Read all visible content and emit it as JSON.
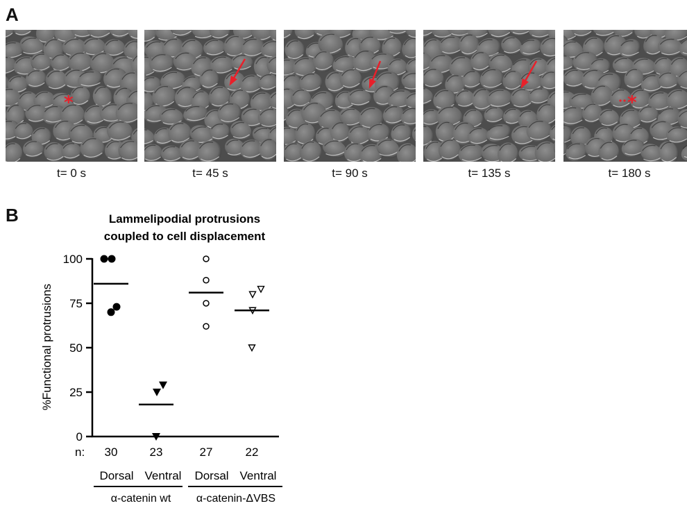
{
  "panel_a": {
    "label": "A",
    "frames": [
      {
        "caption": "t= 0 s",
        "marker": "asterisk"
      },
      {
        "caption": "t= 45 s",
        "marker": "arrow"
      },
      {
        "caption": "t= 90 s",
        "marker": "arrow"
      },
      {
        "caption": "t= 135 s",
        "marker": "arrow"
      },
      {
        "caption": "t= 180 s",
        "marker": "dotted-asterisk"
      }
    ],
    "marker_color": "#e8202a"
  },
  "panel_b": {
    "label": "B",
    "n_label": "n:",
    "group_labels": [
      "α-catenin wt",
      "α-catenin-ΔVBS"
    ]
  },
  "chart_data": {
    "type": "scatter",
    "title": "Lammelipodial protrusions coupled to cell displacement",
    "title_lines": [
      "Lammelipodial protrusions",
      "coupled to cell displacement"
    ],
    "ylabel": "%Functional protrusions",
    "ylim": [
      0,
      100
    ],
    "yticks": [
      0,
      25,
      50,
      75,
      100
    ],
    "categories": [
      "Dorsal",
      "Ventral",
      "Dorsal",
      "Ventral"
    ],
    "n": [
      "30",
      "23",
      "27",
      "22"
    ],
    "series": [
      {
        "marker": "filled-circle",
        "values": [
          100,
          100,
          73,
          70
        ],
        "mean": 86
      },
      {
        "marker": "filled-triangle",
        "values": [
          29,
          25,
          0
        ],
        "mean": 18
      },
      {
        "marker": "open-circle",
        "values": [
          100,
          88,
          75,
          62
        ],
        "mean": 81
      },
      {
        "marker": "open-triangle",
        "values": [
          83,
          80,
          71,
          50
        ],
        "mean": 71
      }
    ]
  }
}
